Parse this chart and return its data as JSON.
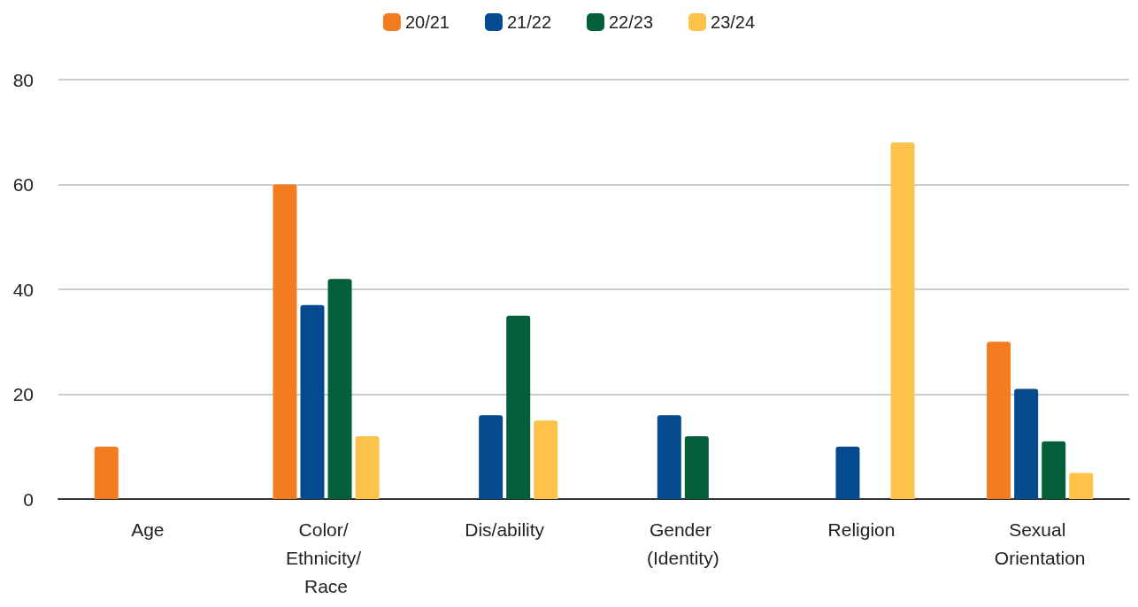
{
  "chart_data": {
    "type": "bar",
    "categories": [
      "Age",
      "Color/ Ethnicity/ Race",
      "Dis/ability",
      "Gender (Identity)",
      "Religion",
      "Sexual Orientation"
    ],
    "series": [
      {
        "name": "20/21",
        "color": "#f37b20",
        "values": [
          10,
          60,
          null,
          null,
          null,
          30
        ]
      },
      {
        "name": "21/22",
        "color": "#034a8f",
        "values": [
          null,
          37,
          16,
          16,
          10,
          21
        ]
      },
      {
        "name": "22/23",
        "color": "#035e3a",
        "values": [
          null,
          42,
          35,
          12,
          null,
          11
        ]
      },
      {
        "name": "23/24",
        "color": "#fdc24a",
        "values": [
          null,
          12,
          15,
          null,
          68,
          5
        ]
      }
    ],
    "ylim": [
      0,
      80
    ],
    "yticks": [
      0,
      20,
      40,
      60,
      80
    ],
    "grid": "y",
    "legend": "top"
  }
}
